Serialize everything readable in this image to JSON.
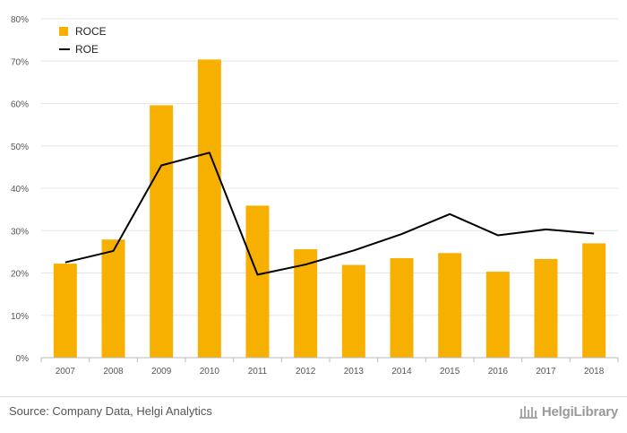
{
  "chart_data": {
    "type": "bar",
    "categories": [
      "2007",
      "2008",
      "2009",
      "2010",
      "2011",
      "2012",
      "2013",
      "2014",
      "2015",
      "2016",
      "2017",
      "2018"
    ],
    "series": [
      {
        "name": "ROCE",
        "type": "bar",
        "color": "#f7b000",
        "values": [
          22.2,
          27.9,
          59.6,
          70.4,
          35.9,
          25.6,
          21.9,
          23.5,
          24.7,
          20.3,
          23.3,
          27.0
        ]
      },
      {
        "name": "ROE",
        "type": "line",
        "color": "#000000",
        "values": [
          22.5,
          25.2,
          45.4,
          48.4,
          19.6,
          22.0,
          25.3,
          29.2,
          33.9,
          28.9,
          30.3,
          29.3
        ]
      }
    ],
    "ylim": [
      0,
      80
    ],
    "yticks": [
      "0%",
      "10%",
      "20%",
      "30%",
      "40%",
      "50%",
      "60%",
      "70%",
      "80%"
    ],
    "grid": true,
    "legend_position": "top-left"
  },
  "footer": {
    "source": "Source: Company Data, Helgi Analytics",
    "brand": "HelgiLibrary"
  },
  "icons": {
    "brand_icon": "library-building-icon"
  }
}
